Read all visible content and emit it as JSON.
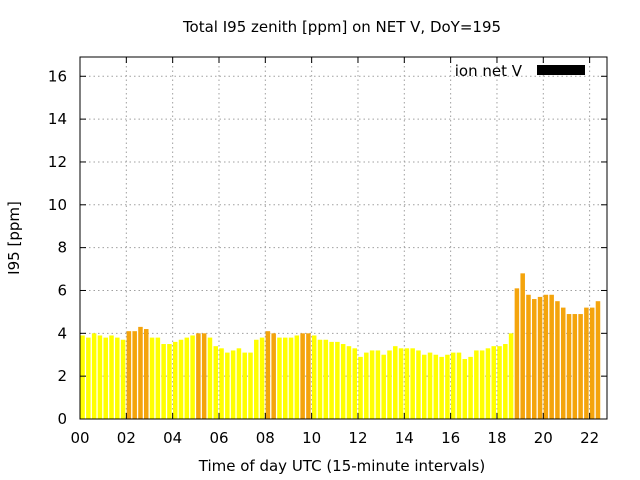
{
  "chart_data": {
    "type": "bar",
    "title": "Total I95 zenith [ppm] on NET V, DoY=195",
    "xlabel": "Time of day UTC (15-minute intervals)",
    "ylabel": "I95 [ppm]",
    "xlim": [
      0,
      22.75
    ],
    "ylim": [
      0,
      16.9
    ],
    "x_ticks": [
      {
        "value": 0,
        "label": "00"
      },
      {
        "value": 2,
        "label": "02"
      },
      {
        "value": 4,
        "label": "04"
      },
      {
        "value": 6,
        "label": "06"
      },
      {
        "value": 8,
        "label": "08"
      },
      {
        "value": 10,
        "label": "10"
      },
      {
        "value": 12,
        "label": "12"
      },
      {
        "value": 14,
        "label": "14"
      },
      {
        "value": 16,
        "label": "16"
      },
      {
        "value": 18,
        "label": "18"
      },
      {
        "value": 20,
        "label": "20"
      },
      {
        "value": 22,
        "label": "22"
      }
    ],
    "y_ticks": [
      {
        "value": 0,
        "label": "0"
      },
      {
        "value": 2,
        "label": "2"
      },
      {
        "value": 4,
        "label": "4"
      },
      {
        "value": 6,
        "label": "6"
      },
      {
        "value": 8,
        "label": "8"
      },
      {
        "value": 10,
        "label": "10"
      },
      {
        "value": 12,
        "label": "12"
      },
      {
        "value": 14,
        "label": "14"
      },
      {
        "value": 16,
        "label": "16"
      }
    ],
    "grid": true,
    "interval_hours": 0.25,
    "legend": {
      "label": "ion net V",
      "position": "top-right",
      "color": "#000000"
    },
    "colors": {
      "normal": "#ffff00",
      "elevated": "#f4a40c"
    },
    "series": [
      {
        "values": [
          3.9,
          3.8,
          4.0,
          3.9,
          3.8,
          3.9,
          3.8,
          3.7,
          4.1,
          4.1,
          4.3,
          4.2,
          3.8,
          3.8,
          3.5,
          3.5,
          3.6,
          3.7,
          3.8,
          3.9,
          4.0,
          4.0,
          3.8,
          3.4,
          3.3,
          3.1,
          3.2,
          3.3,
          3.1,
          3.1,
          3.7,
          3.8,
          4.1,
          4.0,
          3.8,
          3.8,
          3.8,
          3.9,
          4.0,
          4.0,
          3.9,
          3.7,
          3.7,
          3.6,
          3.6,
          3.5,
          3.4,
          3.3,
          2.9,
          3.1,
          3.2,
          3.2,
          3.0,
          3.2,
          3.4,
          3.3,
          3.3,
          3.3,
          3.2,
          3.0,
          3.1,
          3.0,
          2.9,
          3.0,
          3.1,
          3.1,
          2.8,
          2.9,
          3.2,
          3.2,
          3.3,
          3.4,
          3.4,
          3.5,
          4.0,
          6.1,
          6.8,
          5.8,
          5.6,
          5.7,
          5.8,
          5.8,
          5.5,
          5.2,
          4.9,
          4.9,
          4.9,
          5.2,
          5.2,
          5.5
        ],
        "levels": [
          "n",
          "n",
          "n",
          "n",
          "n",
          "n",
          "n",
          "n",
          "e",
          "e",
          "e",
          "e",
          "n",
          "n",
          "n",
          "n",
          "n",
          "n",
          "n",
          "n",
          "e",
          "e",
          "n",
          "n",
          "n",
          "n",
          "n",
          "n",
          "n",
          "n",
          "n",
          "n",
          "e",
          "e",
          "n",
          "n",
          "n",
          "n",
          "e",
          "e",
          "n",
          "n",
          "n",
          "n",
          "n",
          "n",
          "n",
          "n",
          "n",
          "n",
          "n",
          "n",
          "n",
          "n",
          "n",
          "n",
          "n",
          "n",
          "n",
          "n",
          "n",
          "n",
          "n",
          "n",
          "n",
          "n",
          "n",
          "n",
          "n",
          "n",
          "n",
          "n",
          "n",
          "n",
          "n",
          "e",
          "e",
          "e",
          "e",
          "e",
          "e",
          "e",
          "e",
          "e",
          "e",
          "e",
          "e",
          "e",
          "e",
          "e"
        ]
      }
    ]
  }
}
